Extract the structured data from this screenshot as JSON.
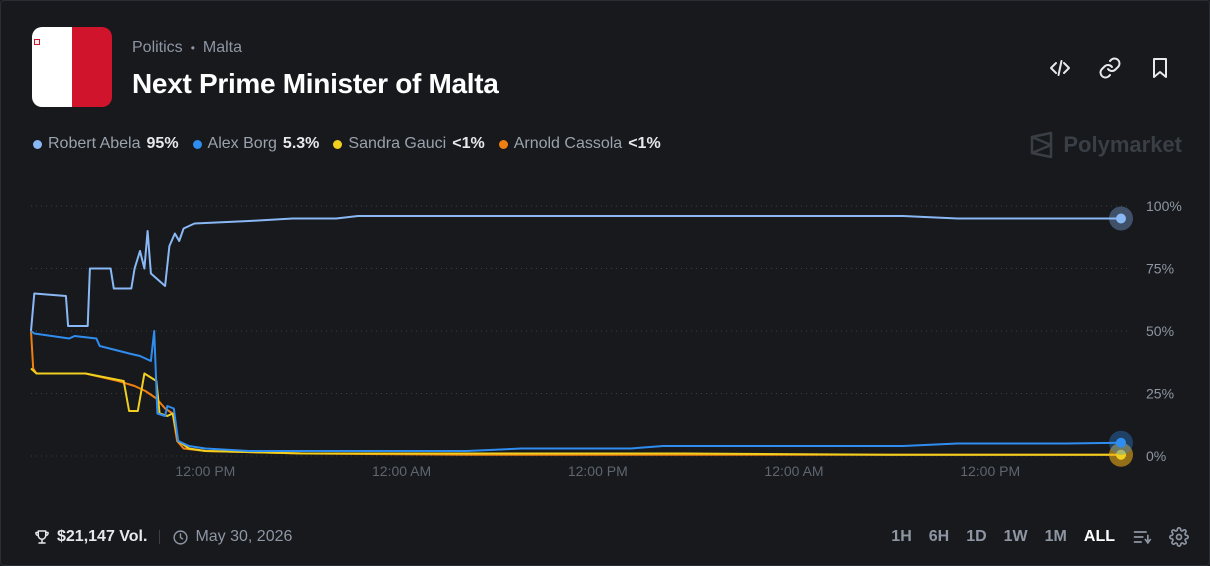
{
  "header": {
    "category": "Politics",
    "subcategory": "Malta",
    "title": "Next Prime Minister of Malta"
  },
  "icons": {
    "embed": "code-icon",
    "link": "link-icon",
    "bookmark": "bookmark-icon",
    "volume": "trophy-icon",
    "date": "clock-icon",
    "sort": "sort-icon",
    "settings": "gear-icon"
  },
  "legend": [
    {
      "name": "Robert Abela",
      "value": "95%",
      "color": "#8ab8f5"
    },
    {
      "name": "Alex Borg",
      "value": "5.3%",
      "color": "#2f8df0"
    },
    {
      "name": "Sandra Gauci",
      "value": "<1%",
      "color": "#f0cf1e"
    },
    {
      "name": "Arnold Cassola",
      "value": "<1%",
      "color": "#f07f12"
    }
  ],
  "brand": "Polymarket",
  "footer": {
    "volume": "$21,147 Vol.",
    "date": "May 30, 2026"
  },
  "ranges": [
    "1H",
    "6H",
    "1D",
    "1W",
    "1M",
    "ALL"
  ],
  "active_range": "ALL",
  "chart_data": {
    "type": "line",
    "y_ticks": [
      "100%",
      "75%",
      "50%",
      "25%",
      "0%"
    ],
    "ylim": [
      0,
      100
    ],
    "xlim": [
      0,
      100
    ],
    "x_ticks": [
      {
        "x": 16,
        "label": "12:00 PM"
      },
      {
        "x": 34,
        "label": "12:00 AM"
      },
      {
        "x": 52,
        "label": "12:00 PM"
      },
      {
        "x": 70,
        "label": "12:00 AM"
      },
      {
        "x": 88,
        "label": "12:00 PM"
      }
    ],
    "series": [
      {
        "name": "Robert Abela",
        "color": "#8ab8f5",
        "points": [
          [
            0,
            50
          ],
          [
            0.3,
            65
          ],
          [
            3.2,
            64
          ],
          [
            3.4,
            52
          ],
          [
            5.2,
            52
          ],
          [
            5.4,
            75
          ],
          [
            7.3,
            75
          ],
          [
            7.6,
            67
          ],
          [
            9.2,
            67
          ],
          [
            9.5,
            75
          ],
          [
            10,
            82
          ],
          [
            10.4,
            75
          ],
          [
            10.7,
            90
          ],
          [
            11,
            73
          ],
          [
            12.3,
            68
          ],
          [
            12.7,
            84
          ],
          [
            13.2,
            89
          ],
          [
            13.6,
            86
          ],
          [
            14,
            91
          ],
          [
            15,
            93
          ],
          [
            20,
            94
          ],
          [
            24,
            95
          ],
          [
            28,
            95
          ],
          [
            30,
            96
          ],
          [
            32,
            96
          ],
          [
            40,
            96
          ],
          [
            50,
            96
          ],
          [
            60,
            96
          ],
          [
            80,
            96
          ],
          [
            85,
            95
          ],
          [
            88,
            95
          ],
          [
            89,
            95
          ],
          [
            90,
            95
          ],
          [
            92,
            95
          ],
          [
            100,
            95
          ]
        ]
      },
      {
        "name": "Alex Borg",
        "color": "#2f8df0",
        "points": [
          [
            0,
            50
          ],
          [
            0.3,
            49
          ],
          [
            3.5,
            47
          ],
          [
            4,
            48
          ],
          [
            6,
            47
          ],
          [
            6.3,
            44
          ],
          [
            9,
            41
          ],
          [
            10,
            40
          ],
          [
            11,
            38
          ],
          [
            11.3,
            50
          ],
          [
            11.6,
            17
          ],
          [
            12.3,
            16
          ],
          [
            12.5,
            20
          ],
          [
            13.1,
            19
          ],
          [
            13.5,
            6
          ],
          [
            14.5,
            4
          ],
          [
            16,
            3
          ],
          [
            20,
            2
          ],
          [
            30,
            2
          ],
          [
            40,
            2
          ],
          [
            45,
            3
          ],
          [
            55,
            3
          ],
          [
            58,
            4
          ],
          [
            70,
            4
          ],
          [
            80,
            4
          ],
          [
            85,
            5
          ],
          [
            95,
            5
          ],
          [
            100,
            5.3
          ]
        ]
      },
      {
        "name": "Sandra Gauci",
        "color": "#f0cf1e",
        "points": [
          [
            0,
            35
          ],
          [
            0.5,
            33
          ],
          [
            5,
            33
          ],
          [
            8.5,
            30
          ],
          [
            9,
            18
          ],
          [
            9.8,
            18
          ],
          [
            10.4,
            33
          ],
          [
            11.5,
            30
          ],
          [
            11.8,
            17
          ],
          [
            12.5,
            16
          ],
          [
            13,
            17
          ],
          [
            13.5,
            6
          ],
          [
            14.5,
            3
          ],
          [
            16,
            2
          ],
          [
            25,
            1
          ],
          [
            40,
            1
          ],
          [
            60,
            1
          ],
          [
            80,
            0.5
          ],
          [
            100,
            0.5
          ]
        ]
      },
      {
        "name": "Arnold Cassola",
        "color": "#f07f12",
        "points": [
          [
            0,
            50
          ],
          [
            0.2,
            35
          ],
          [
            0.5,
            33
          ],
          [
            5,
            33
          ],
          [
            8,
            30
          ],
          [
            9.5,
            28
          ],
          [
            10.5,
            26
          ],
          [
            11.5,
            23
          ],
          [
            12.3,
            19
          ],
          [
            13,
            17
          ],
          [
            13.4,
            6
          ],
          [
            14,
            3
          ],
          [
            16,
            2
          ],
          [
            25,
            1
          ],
          [
            40,
            0.5
          ],
          [
            60,
            0.5
          ],
          [
            80,
            0.5
          ],
          [
            100,
            0.5
          ]
        ]
      }
    ]
  }
}
